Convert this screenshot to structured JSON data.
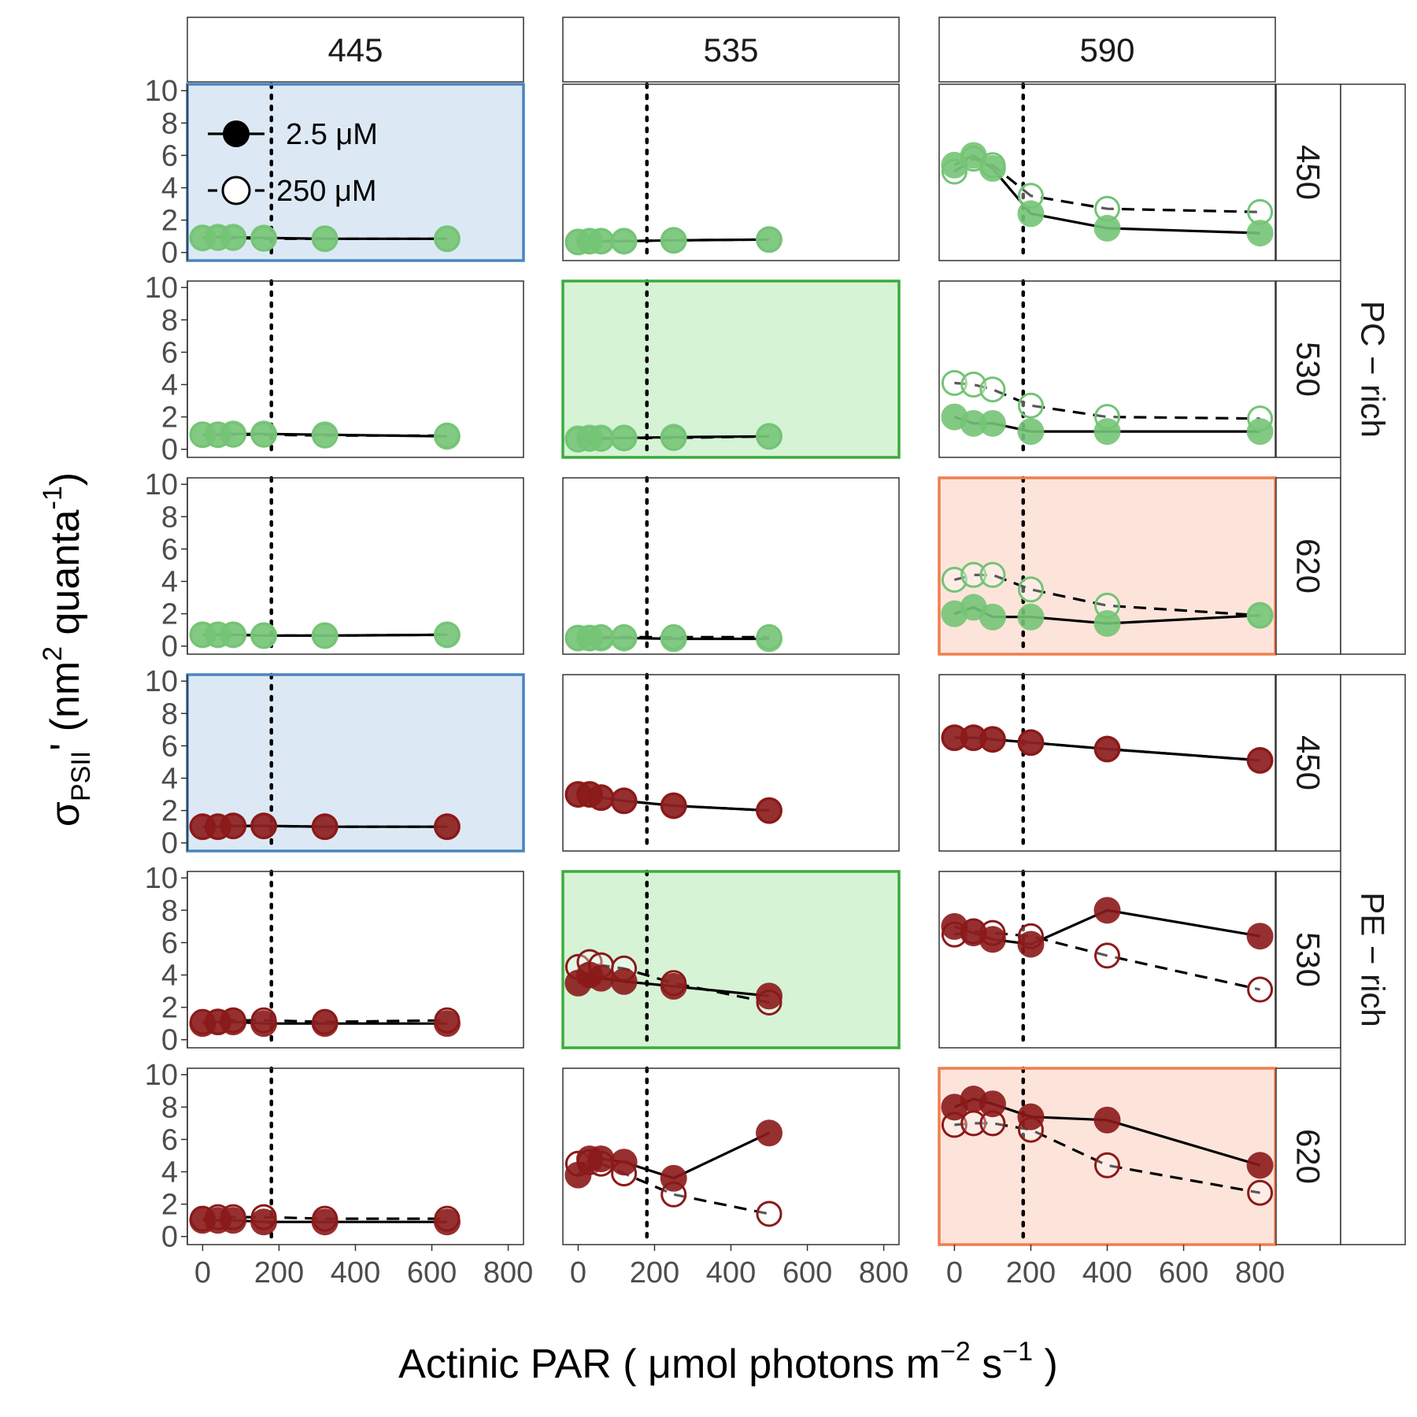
{
  "chart_data": {
    "type": "scatter",
    "xlabel": "Actinic PAR ( μmol photons  m",
    "xlabel_sup1": "−2",
    "xlabel_mid": " s",
    "xlabel_sup2": "−1",
    "xlabel_end": " )",
    "ylabel_sigma": "σ",
    "ylabel_sub": "PSII",
    "ylabel_rest": "' (nm",
    "ylabel_sup1": "2",
    "ylabel_mid": " quanta",
    "ylabel_sup2": "-1",
    "ylabel_end": ")",
    "xlim": [
      -40,
      840
    ],
    "ylim": [
      -0.5,
      10.4
    ],
    "x_ticks": [
      0,
      200,
      400,
      600,
      800
    ],
    "x_tick_labels": [
      "0",
      "200",
      "400",
      "600",
      "800"
    ],
    "y_ticks": [
      0,
      2,
      4,
      6,
      8,
      10
    ],
    "y_tick_labels": [
      "0",
      "2",
      "4",
      "6",
      "8",
      "10"
    ],
    "reference_line_x": 180,
    "column_labels": [
      "445",
      "535",
      "590"
    ],
    "row_labels": [
      "450",
      "530",
      "620",
      "450",
      "530",
      "620"
    ],
    "group_labels": [
      "PC − rich",
      "PE − rich"
    ],
    "legend": {
      "position": "top-left",
      "entries": [
        {
          "label": "2.5 μM",
          "marker": "filled",
          "line": "solid"
        },
        {
          "label": "250 μM",
          "marker": "open",
          "line": "dashed"
        }
      ]
    },
    "colors": {
      "PC": "#74c476",
      "PE": "#8b1a1a",
      "highlight_blue_fill": "#dce9f5",
      "highlight_blue_stroke": "#4a86c0",
      "highlight_green_fill": "#d6f3d6",
      "highlight_green_stroke": "#3cab3c",
      "highlight_orange_fill": "#fde4da",
      "highlight_orange_stroke": "#ee7e4f",
      "line": "#000000"
    },
    "panels": [
      {
        "row": 0,
        "col": 0,
        "highlight": "blue",
        "low_x": [
          0,
          40,
          80,
          160,
          320,
          640
        ],
        "low_y": [
          0.9,
          0.95,
          0.95,
          0.9,
          0.85,
          0.85
        ],
        "high_x": [
          0,
          40,
          80,
          160,
          320,
          640
        ],
        "high_y": [
          0.9,
          0.9,
          0.9,
          0.85,
          0.85,
          0.85
        ]
      },
      {
        "row": 0,
        "col": 1,
        "highlight": "none",
        "low_x": [
          0,
          30,
          60,
          120,
          250,
          500
        ],
        "low_y": [
          0.65,
          0.7,
          0.7,
          0.7,
          0.75,
          0.8
        ],
        "high_x": [
          0,
          30,
          60,
          120,
          250,
          500
        ],
        "high_y": [
          0.65,
          0.7,
          0.7,
          0.7,
          0.75,
          0.8
        ]
      },
      {
        "row": 0,
        "col": 2,
        "highlight": "none",
        "low_x": [
          0,
          50,
          100,
          200,
          400,
          800
        ],
        "low_y": [
          5.4,
          6.0,
          5.2,
          2.4,
          1.5,
          1.2
        ],
        "high_x": [
          0,
          50,
          100,
          200,
          400,
          800
        ],
        "high_y": [
          5.0,
          5.8,
          5.4,
          3.5,
          2.7,
          2.5
        ]
      },
      {
        "row": 1,
        "col": 0,
        "highlight": "none",
        "low_x": [
          0,
          40,
          80,
          160,
          320,
          640
        ],
        "low_y": [
          0.9,
          0.9,
          0.95,
          0.95,
          0.9,
          0.8
        ],
        "high_x": [
          0,
          40,
          80,
          160,
          320,
          640
        ],
        "high_y": [
          0.9,
          0.9,
          0.9,
          0.9,
          0.85,
          0.85
        ]
      },
      {
        "row": 1,
        "col": 1,
        "highlight": "green",
        "low_x": [
          0,
          30,
          60,
          120,
          250,
          500
        ],
        "low_y": [
          0.65,
          0.7,
          0.7,
          0.7,
          0.75,
          0.8
        ],
        "high_x": [
          0,
          30,
          60,
          120,
          250,
          500
        ],
        "high_y": [
          0.6,
          0.65,
          0.65,
          0.7,
          0.7,
          0.8
        ]
      },
      {
        "row": 1,
        "col": 2,
        "highlight": "none",
        "low_x": [
          0,
          50,
          100,
          200,
          400,
          800
        ],
        "low_y": [
          2.0,
          1.6,
          1.6,
          1.1,
          1.1,
          1.1
        ],
        "high_x": [
          0,
          50,
          100,
          200,
          400,
          800
        ],
        "high_y": [
          4.1,
          4.0,
          3.7,
          2.7,
          2.0,
          1.9
        ]
      },
      {
        "row": 2,
        "col": 0,
        "highlight": "none",
        "low_x": [
          0,
          40,
          80,
          160,
          320,
          640
        ],
        "low_y": [
          0.7,
          0.7,
          0.7,
          0.65,
          0.65,
          0.7
        ],
        "high_x": [
          0,
          40,
          80,
          160,
          320,
          640
        ],
        "high_y": [
          0.7,
          0.7,
          0.7,
          0.65,
          0.65,
          0.7
        ]
      },
      {
        "row": 2,
        "col": 1,
        "highlight": "none",
        "low_x": [
          0,
          30,
          60,
          120,
          250,
          500
        ],
        "low_y": [
          0.5,
          0.5,
          0.5,
          0.5,
          0.45,
          0.45
        ],
        "high_x": [
          0,
          30,
          60,
          120,
          250,
          500
        ],
        "high_y": [
          0.5,
          0.5,
          0.55,
          0.55,
          0.55,
          0.55
        ]
      },
      {
        "row": 2,
        "col": 2,
        "highlight": "orange",
        "low_x": [
          0,
          50,
          100,
          200,
          400,
          800
        ],
        "low_y": [
          2.0,
          2.4,
          1.8,
          1.8,
          1.4,
          1.9
        ],
        "high_x": [
          0,
          50,
          100,
          200,
          400,
          800
        ],
        "high_y": [
          4.1,
          4.4,
          4.4,
          3.5,
          2.5,
          1.9
        ]
      },
      {
        "row": 3,
        "col": 0,
        "highlight": "blue",
        "low_x": [
          0,
          40,
          80,
          160,
          320,
          640
        ],
        "low_y": [
          1.0,
          1.0,
          1.05,
          1.05,
          1.0,
          1.0
        ],
        "high_x": [
          0,
          40,
          80,
          160,
          320,
          640
        ],
        "high_y": [
          1.0,
          1.0,
          1.05,
          1.05,
          1.0,
          1.0
        ]
      },
      {
        "row": 3,
        "col": 1,
        "highlight": "none",
        "low_x": [
          0,
          30,
          60,
          120,
          250,
          500
        ],
        "low_y": [
          3.0,
          3.0,
          2.8,
          2.6,
          2.3,
          2.0
        ],
        "high_x": [
          0,
          30,
          60,
          120,
          250,
          500
        ],
        "high_y": [
          3.0,
          3.0,
          2.8,
          2.6,
          2.3,
          2.0
        ]
      },
      {
        "row": 3,
        "col": 2,
        "highlight": "none",
        "low_x": [
          0,
          50,
          100,
          200,
          400,
          800
        ],
        "low_y": [
          6.5,
          6.5,
          6.4,
          6.2,
          5.8,
          5.1
        ],
        "high_x": [
          0,
          50,
          100,
          200,
          400,
          800
        ],
        "high_y": [
          6.5,
          6.5,
          6.4,
          6.2,
          5.8,
          5.1
        ]
      },
      {
        "row": 4,
        "col": 0,
        "highlight": "none",
        "low_x": [
          0,
          40,
          80,
          160,
          320,
          640
        ],
        "low_y": [
          1.0,
          1.1,
          1.1,
          1.0,
          1.0,
          1.0
        ],
        "high_x": [
          0,
          40,
          80,
          160,
          320,
          640
        ],
        "high_y": [
          1.1,
          1.1,
          1.2,
          1.2,
          1.1,
          1.2
        ]
      },
      {
        "row": 4,
        "col": 1,
        "highlight": "green",
        "low_x": [
          0,
          30,
          60,
          120,
          250,
          500
        ],
        "low_y": [
          3.5,
          4.0,
          3.8,
          3.6,
          3.3,
          2.7
        ],
        "high_x": [
          0,
          30,
          60,
          120,
          250,
          500
        ],
        "high_y": [
          4.5,
          4.8,
          4.6,
          4.4,
          3.5,
          2.3
        ]
      },
      {
        "row": 4,
        "col": 2,
        "highlight": "none",
        "low_x": [
          0,
          50,
          100,
          200,
          400,
          800
        ],
        "low_y": [
          7.0,
          6.6,
          6.2,
          5.9,
          8.0,
          6.4
        ],
        "high_x": [
          0,
          50,
          100,
          200,
          400,
          800
        ],
        "high_y": [
          6.5,
          6.7,
          6.6,
          6.4,
          5.2,
          3.1
        ]
      },
      {
        "row": 5,
        "col": 0,
        "highlight": "none",
        "low_x": [
          0,
          40,
          80,
          160,
          320,
          640
        ],
        "low_y": [
          1.0,
          1.0,
          1.0,
          0.9,
          0.9,
          0.9
        ],
        "high_x": [
          0,
          40,
          80,
          160,
          320,
          640
        ],
        "high_y": [
          1.1,
          1.2,
          1.2,
          1.2,
          1.1,
          1.1
        ]
      },
      {
        "row": 5,
        "col": 1,
        "highlight": "none",
        "low_x": [
          0,
          30,
          60,
          120,
          250,
          500
        ],
        "low_y": [
          3.8,
          4.8,
          4.8,
          4.6,
          3.6,
          6.4
        ],
        "high_x": [
          0,
          30,
          60,
          120,
          250,
          500
        ],
        "high_y": [
          4.5,
          4.6,
          4.5,
          3.9,
          2.6,
          1.4
        ]
      },
      {
        "row": 5,
        "col": 2,
        "highlight": "orange",
        "low_x": [
          0,
          50,
          100,
          200,
          400,
          800
        ],
        "low_y": [
          8.0,
          8.5,
          8.2,
          7.4,
          7.2,
          4.4
        ],
        "high_x": [
          0,
          50,
          100,
          200,
          400,
          800
        ],
        "high_y": [
          6.9,
          7.0,
          7.0,
          6.6,
          4.4,
          2.7
        ]
      }
    ]
  }
}
